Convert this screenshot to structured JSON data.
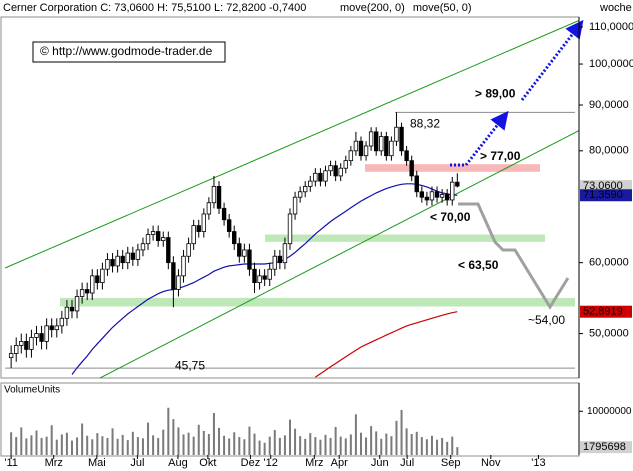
{
  "chart_data": {
    "type": "candlestick",
    "header": "Cerner Corporation C: 73,0600 H: 75,5100 L: 72,8200 -0,7400",
    "period": "woche",
    "copyright": "© http://www.godmode-trader.de",
    "log_scale": true,
    "up_color": "#ffffff",
    "down_color": "#000000",
    "open": [
      47,
      47.5,
      48.5,
      49,
      48,
      49.5,
      50,
      49,
      51,
      50.5,
      51,
      52,
      53.5,
      53,
      55,
      56,
      55.5,
      58,
      57,
      59,
      60.5,
      59.5,
      61,
      60,
      61.5,
      60.5,
      62,
      63,
      64.5,
      65,
      63.5,
      64,
      60,
      56,
      58,
      61,
      63,
      66,
      65,
      68,
      70,
      73,
      69,
      67,
      65,
      63,
      61,
      62,
      59,
      57,
      58,
      57.5,
      59,
      61,
      60,
      63,
      68,
      71,
      72,
      73,
      74,
      75.5,
      74,
      76,
      77,
      75,
      76.5,
      78,
      80,
      82,
      79,
      81,
      84,
      80,
      83,
      79,
      82,
      85,
      80,
      78,
      75,
      72,
      71,
      70.5,
      72,
      71,
      71.5,
      70.5,
      73.8
    ],
    "high": [
      48.5,
      49.5,
      50,
      50,
      50.5,
      51,
      51,
      52,
      52,
      52,
      53,
      54.5,
      54.5,
      56,
      57,
      57,
      59,
      59,
      60,
      61.5,
      61.5,
      62,
      62,
      62.5,
      62.5,
      63,
      64,
      65.5,
      66,
      66,
      65,
      65,
      61,
      59,
      62,
      64,
      67,
      67,
      69,
      71,
      75,
      74,
      70,
      68,
      66,
      64,
      63,
      63,
      60,
      59,
      59,
      60,
      62,
      62,
      64,
      69,
      72,
      73,
      74,
      75,
      76.5,
      76.5,
      77,
      78,
      78,
      77.5,
      79,
      81,
      84,
      83,
      82,
      85,
      85,
      84,
      84,
      83,
      88.32,
      86,
      81,
      79,
      76,
      73,
      72,
      73,
      73,
      72.5,
      72.5,
      74.8,
      75.51
    ],
    "low": [
      45.75,
      46.5,
      47.5,
      47,
      47,
      48.5,
      48,
      48,
      49.5,
      49.5,
      50,
      51,
      52,
      52,
      54,
      54.5,
      54.5,
      56,
      56,
      58,
      58.5,
      58.5,
      59,
      59,
      59.5,
      59.5,
      61,
      62,
      63.5,
      62.5,
      62.5,
      59,
      53.5,
      55,
      57,
      60,
      62,
      64,
      64,
      67,
      69,
      68,
      66,
      64,
      62,
      60,
      60,
      58,
      55.5,
      56,
      56.5,
      56.5,
      58,
      59,
      59,
      62,
      67,
      70,
      71,
      72,
      73,
      73,
      73,
      75,
      74,
      74,
      75.5,
      77,
      79,
      78,
      78,
      80,
      79,
      79,
      78,
      78,
      81,
      79,
      77,
      74,
      71,
      70,
      69.5,
      69.5,
      70,
      70,
      69.5,
      69.5,
      72.82
    ],
    "close": [
      47.5,
      48.5,
      49,
      48,
      49.5,
      50,
      49,
      51,
      50.5,
      51,
      52,
      53.5,
      53,
      55,
      56,
      55.5,
      58,
      57,
      59,
      60.5,
      59.5,
      61,
      60,
      61.5,
      60.5,
      62,
      63,
      64.5,
      65,
      63.5,
      64,
      60,
      56,
      58,
      61,
      63,
      66,
      65,
      68,
      70,
      73,
      69,
      67,
      65,
      63,
      61,
      62,
      59,
      57,
      58,
      57.5,
      59,
      61,
      60,
      63,
      68,
      71,
      72,
      73,
      74,
      75.5,
      74,
      76,
      77,
      75,
      76.5,
      78,
      80,
      82,
      79,
      81,
      84,
      80,
      83,
      79,
      82,
      85,
      80,
      78,
      75,
      72,
      71,
      70.5,
      72,
      71,
      71.5,
      70.5,
      73.8,
      73.06
    ],
    "xlim": [
      -2,
      112
    ],
    "xticks": [
      {
        "value": 0,
        "label": "'11"
      },
      {
        "value": 8.4,
        "label": "Mrz"
      },
      {
        "value": 16.9,
        "label": "Mai"
      },
      {
        "value": 24.9,
        "label": "Jul"
      },
      {
        "value": 32.9,
        "label": "Aug"
      },
      {
        "value": 38.8,
        "label": "Okt"
      },
      {
        "value": 47.2,
        "label": "Dez"
      },
      {
        "value": 51.2,
        "label": "'12"
      },
      {
        "value": 59.8,
        "label": "Mrz"
      },
      {
        "value": 64.7,
        "label": "Apr"
      },
      {
        "value": 72.7,
        "label": "Jun"
      },
      {
        "value": 78.1,
        "label": "Jul"
      },
      {
        "value": 86.7,
        "label": "Sep"
      },
      {
        "value": 94.6,
        "label": "Nov"
      },
      {
        "value": 104,
        "label": "'13"
      }
    ],
    "ylim": [
      44.6,
      116.4
    ],
    "yticks": [
      {
        "value": 110,
        "label": "110,0000"
      },
      {
        "value": 100,
        "label": "100,0000"
      },
      {
        "value": 90,
        "label": "90,0000"
      },
      {
        "value": 80,
        "label": "80,0000"
      },
      {
        "value": 60,
        "label": "60,0000"
      },
      {
        "value": 50,
        "label": "50,0000"
      }
    ],
    "series": [
      {
        "name": "move(200, 0)",
        "color": "#cc0000",
        "values": [
          null,
          null,
          null,
          null,
          null,
          null,
          null,
          null,
          null,
          null,
          null,
          null,
          null,
          null,
          null,
          null,
          null,
          null,
          null,
          null,
          null,
          null,
          null,
          null,
          null,
          null,
          null,
          null,
          null,
          null,
          null,
          null,
          null,
          null,
          null,
          null,
          null,
          null,
          null,
          null,
          null,
          null,
          null,
          null,
          null,
          null,
          null,
          null,
          null,
          null,
          null,
          null,
          null,
          null,
          null,
          null,
          null,
          null,
          null,
          null,
          44.7,
          45.1,
          45.5,
          45.9,
          46.3,
          46.7,
          47.1,
          47.5,
          47.9,
          48.3,
          48.6,
          48.9,
          49.2,
          49.5,
          49.8,
          50.1,
          50.4,
          50.7,
          51,
          51.2,
          51.4,
          51.6,
          51.8,
          52,
          52.2,
          52.4,
          52.6,
          52.75,
          52.8919
        ]
      },
      {
        "name": "move(50, 0)",
        "color": "#1010b0",
        "values": [
          null,
          null,
          null,
          null,
          null,
          null,
          null,
          null,
          null,
          null,
          null,
          null,
          45,
          45.8,
          46.5,
          47.2,
          48,
          48.7,
          49.4,
          50.1,
          50.8,
          51.4,
          52,
          52.6,
          53.1,
          53.6,
          54.1,
          54.6,
          55,
          55.4,
          55.7,
          55.9,
          56,
          56.2,
          56.4,
          56.7,
          57,
          57.4,
          57.8,
          58.2,
          58.7,
          59,
          59.3,
          59.5,
          59.6,
          59.7,
          59.8,
          59.8,
          59.8,
          59.8,
          59.8,
          59.9,
          60,
          60.2,
          60.5,
          61,
          61.6,
          62.3,
          63,
          63.8,
          64.6,
          65.3,
          66,
          66.7,
          67.3,
          67.9,
          68.5,
          69.1,
          69.7,
          70.3,
          70.8,
          71.3,
          71.8,
          72.2,
          72.6,
          72.9,
          73.2,
          73.4,
          73.5,
          73.5,
          73.4,
          73.2,
          72.9,
          72.5,
          72.1,
          71.8,
          71.6,
          71.45,
          71.359
        ]
      }
    ],
    "zones": [
      {
        "from": 75.8,
        "to": 77.3,
        "color": "#f6b8b8"
      },
      {
        "from": 63.3,
        "to": 64.5,
        "color": "#bfe8b8"
      },
      {
        "from": 53.6,
        "to": 54.8,
        "color": "#bfe8b8"
      }
    ],
    "annotations": [
      {
        "value": 88.32,
        "label": "88,32",
        "color": "#8a8a8a"
      },
      {
        "value": 89,
        "label": "> 89,00",
        "color": "#1414c8"
      },
      {
        "value": 77,
        "label": "> 77,00",
        "color": "#1414c8"
      },
      {
        "value": 70,
        "label": "< 70,00",
        "color": "#999999"
      },
      {
        "value": 63.5,
        "label": "< 63,50",
        "color": "#999999"
      },
      {
        "value": 54,
        "label": "~54,00",
        "color": "#999999"
      },
      {
        "value": 45.75,
        "label": "45,75",
        "color": "#8a8a8a"
      }
    ],
    "price_labels": [
      {
        "value": 73.06,
        "label": "73,0600",
        "color": "#d0d0d0",
        "text_color": "#000000"
      },
      {
        "value": 71.359,
        "label": "71,3590",
        "color": "#1a1aa0",
        "text_color": "#ffffff"
      },
      {
        "value": 52.8919,
        "label": "52,8919",
        "color": "#cc0000",
        "text_color": "#ffffff"
      }
    ],
    "volume": {
      "title": "VolumeUnits",
      "color": "#7a7a7a",
      "ylim": [
        0,
        16000000
      ],
      "yticks": [
        10000000
      ],
      "values": [
        5200000,
        4100000,
        6300000,
        3800000,
        4500000,
        5600000,
        3900000,
        4200000,
        6800000,
        3500000,
        4700000,
        5100000,
        3300000,
        4000000,
        7200000,
        4400000,
        3600000,
        5000000,
        4300000,
        3900000,
        6100000,
        3700000,
        4600000,
        3400000,
        5300000,
        4100000,
        3800000,
        7400000,
        4500000,
        3900000,
        5800000,
        10800000,
        8200000,
        6300000,
        4700000,
        5100000,
        4200000,
        6900000,
        5500000,
        4800000,
        9600000,
        6200000,
        4400000,
        3800000,
        5200000,
        4100000,
        3600000,
        6500000,
        4900000,
        3300000,
        2800000,
        4200000,
        5700000,
        3900000,
        4500000,
        8100000,
        6000000,
        4300000,
        3700000,
        5000000,
        4100000,
        3500000,
        4600000,
        3900000,
        6400000,
        4200000,
        3800000,
        4700000,
        9300000,
        5100000,
        4000000,
        6600000,
        5400000,
        3700000,
        4900000,
        4300000,
        7800000,
        10300000,
        6100000,
        4800000,
        5300000,
        4100000,
        3600000,
        4400000,
        3500000,
        3900000,
        3000000,
        4200000,
        1795698
      ]
    }
  }
}
